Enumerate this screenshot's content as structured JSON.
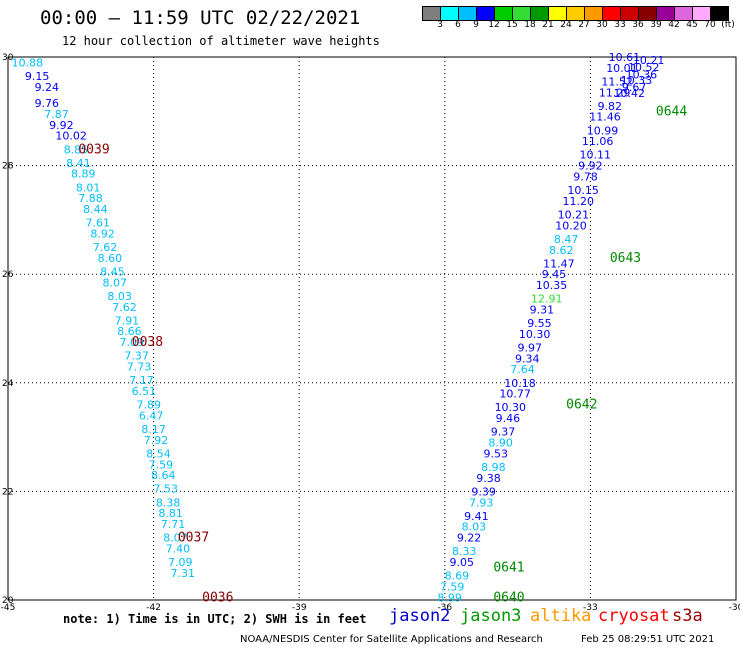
{
  "header": {
    "title": "00:00 – 11:59 UTC 02/22/2021",
    "subtitle": "12 hour collection of altimeter wave heights"
  },
  "colorbar": {
    "colors": [
      "#7f7f7f",
      "#00ffff",
      "#00bfff",
      "#0000ff",
      "#00cc00",
      "#33dd33",
      "#009900",
      "#ffff00",
      "#ffcc00",
      "#ff9900",
      "#ff0000",
      "#cc0000",
      "#880000",
      "#990099",
      "#dd66dd",
      "#ffaaff",
      "#000000"
    ],
    "labels": [
      "3",
      "6",
      "9",
      "12",
      "15",
      "18",
      "21",
      "24",
      "27",
      "30",
      "33",
      "36",
      "39",
      "42",
      "45",
      "70",
      "(ft)"
    ]
  },
  "chart_data": {
    "type": "scatter",
    "xlim": [
      -45,
      -30
    ],
    "ylim": [
      20,
      30
    ],
    "xticks": [
      "-45",
      "-42",
      "-39",
      "-36",
      "-33",
      "-30"
    ],
    "yticks": [
      "20",
      "22",
      "24",
      "26",
      "28",
      "30"
    ],
    "grid": true,
    "points": [
      {
        "x": -44.6,
        "y": 29.9,
        "v": "10.88",
        "c": "#00bfff"
      },
      {
        "x": -44.4,
        "y": 29.65,
        "v": "9.15",
        "c": "#0000ff"
      },
      {
        "x": -44.2,
        "y": 29.45,
        "v": "9.24",
        "c": "#0000ff"
      },
      {
        "x": -44.2,
        "y": 29.15,
        "v": "9.76",
        "c": "#0000ff"
      },
      {
        "x": -44.0,
        "y": 28.95,
        "v": "7.87",
        "c": "#00bfff"
      },
      {
        "x": -43.9,
        "y": 28.75,
        "v": "9.92",
        "c": "#0000ff"
      },
      {
        "x": -43.7,
        "y": 28.55,
        "v": "10.02",
        "c": "#0000ff"
      },
      {
        "x": -43.6,
        "y": 28.3,
        "v": "8.85",
        "c": "#00bfff"
      },
      {
        "x": -43.55,
        "y": 28.05,
        "v": "8.41",
        "c": "#00bfff"
      },
      {
        "x": -43.45,
        "y": 27.85,
        "v": "8.89",
        "c": "#00bfff"
      },
      {
        "x": -43.35,
        "y": 27.6,
        "v": "8.01",
        "c": "#00bfff"
      },
      {
        "x": -43.3,
        "y": 27.4,
        "v": "7.88",
        "c": "#00bfff"
      },
      {
        "x": -43.2,
        "y": 27.2,
        "v": "8.44",
        "c": "#00bfff"
      },
      {
        "x": -43.15,
        "y": 26.95,
        "v": "7.61",
        "c": "#00bfff"
      },
      {
        "x": -43.05,
        "y": 26.75,
        "v": "8.92",
        "c": "#00bfff"
      },
      {
        "x": -43.0,
        "y": 26.5,
        "v": "7.62",
        "c": "#00bfff"
      },
      {
        "x": -42.9,
        "y": 26.3,
        "v": "8.60",
        "c": "#00bfff"
      },
      {
        "x": -42.85,
        "y": 26.05,
        "v": "8.45",
        "c": "#00bfff"
      },
      {
        "x": -42.8,
        "y": 25.85,
        "v": "8.07",
        "c": "#00bfff"
      },
      {
        "x": -42.7,
        "y": 25.6,
        "v": "8.03",
        "c": "#00bfff"
      },
      {
        "x": -42.6,
        "y": 25.4,
        "v": "7.62",
        "c": "#00bfff"
      },
      {
        "x": -42.55,
        "y": 25.15,
        "v": "7.91",
        "c": "#00bfff"
      },
      {
        "x": -42.5,
        "y": 24.95,
        "v": "8.66",
        "c": "#00bfff"
      },
      {
        "x": -42.45,
        "y": 24.75,
        "v": "7.09",
        "c": "#00bfff"
      },
      {
        "x": -42.35,
        "y": 24.5,
        "v": "7.37",
        "c": "#00bfff"
      },
      {
        "x": -42.3,
        "y": 24.3,
        "v": "7.73",
        "c": "#00bfff"
      },
      {
        "x": -42.25,
        "y": 24.05,
        "v": "7.17",
        "c": "#00bfff"
      },
      {
        "x": -42.2,
        "y": 23.85,
        "v": "6.51",
        "c": "#00bfff"
      },
      {
        "x": -42.1,
        "y": 23.6,
        "v": "7.89",
        "c": "#00bfff"
      },
      {
        "x": -42.05,
        "y": 23.4,
        "v": "6.47",
        "c": "#00bfff"
      },
      {
        "x": -42.0,
        "y": 23.15,
        "v": "8.17",
        "c": "#00bfff"
      },
      {
        "x": -41.95,
        "y": 22.95,
        "v": "7.92",
        "c": "#00bfff"
      },
      {
        "x": -41.9,
        "y": 22.7,
        "v": "8.54",
        "c": "#00bfff"
      },
      {
        "x": -41.85,
        "y": 22.5,
        "v": "7.59",
        "c": "#00bfff"
      },
      {
        "x": -41.8,
        "y": 22.3,
        "v": "8.64",
        "c": "#00bfff"
      },
      {
        "x": -41.75,
        "y": 22.05,
        "v": "7.53",
        "c": "#00bfff"
      },
      {
        "x": -41.7,
        "y": 21.8,
        "v": "8.38",
        "c": "#00bfff"
      },
      {
        "x": -41.65,
        "y": 21.6,
        "v": "8.81",
        "c": "#00bfff"
      },
      {
        "x": -41.6,
        "y": 21.4,
        "v": "7.71",
        "c": "#00bfff"
      },
      {
        "x": -41.55,
        "y": 21.15,
        "v": "8.07",
        "c": "#00bfff"
      },
      {
        "x": -41.5,
        "y": 20.95,
        "v": "7.40",
        "c": "#00bfff"
      },
      {
        "x": -41.45,
        "y": 20.7,
        "v": "7.09",
        "c": "#00bfff"
      },
      {
        "x": -41.4,
        "y": 20.5,
        "v": "7.31",
        "c": "#00bfff"
      },
      {
        "x": -35.9,
        "y": 20.05,
        "v": "8.99",
        "c": "#00bfff"
      },
      {
        "x": -35.85,
        "y": 20.25,
        "v": "7.59",
        "c": "#00bfff"
      },
      {
        "x": -35.75,
        "y": 20.45,
        "v": "8.69",
        "c": "#00bfff"
      },
      {
        "x": -35.65,
        "y": 20.7,
        "v": "9.05",
        "c": "#0000ff"
      },
      {
        "x": -35.6,
        "y": 20.9,
        "v": "8.33",
        "c": "#00bfff"
      },
      {
        "x": -35.5,
        "y": 21.15,
        "v": "9.22",
        "c": "#0000ff"
      },
      {
        "x": -35.4,
        "y": 21.35,
        "v": "8.03",
        "c": "#00bfff"
      },
      {
        "x": -35.35,
        "y": 21.55,
        "v": "9.41",
        "c": "#0000ff"
      },
      {
        "x": -35.25,
        "y": 21.8,
        "v": "7.93",
        "c": "#00bfff"
      },
      {
        "x": -35.2,
        "y": 22.0,
        "v": "9.39",
        "c": "#0000ff"
      },
      {
        "x": -35.1,
        "y": 22.25,
        "v": "9.38",
        "c": "#0000ff"
      },
      {
        "x": -35.0,
        "y": 22.45,
        "v": "8.98",
        "c": "#00bfff"
      },
      {
        "x": -34.95,
        "y": 22.7,
        "v": "9.53",
        "c": "#0000ff"
      },
      {
        "x": -34.85,
        "y": 22.9,
        "v": "8.90",
        "c": "#00bfff"
      },
      {
        "x": -34.8,
        "y": 23.1,
        "v": "9.37",
        "c": "#0000ff"
      },
      {
        "x": -34.7,
        "y": 23.35,
        "v": "9.46",
        "c": "#0000ff"
      },
      {
        "x": -34.65,
        "y": 23.55,
        "v": "10.30",
        "c": "#0000ff"
      },
      {
        "x": -34.55,
        "y": 23.8,
        "v": "10.77",
        "c": "#0000ff"
      },
      {
        "x": -34.45,
        "y": 24.0,
        "v": "10.18",
        "c": "#0000ff"
      },
      {
        "x": -34.4,
        "y": 24.25,
        "v": "7.64",
        "c": "#00bfff"
      },
      {
        "x": -34.3,
        "y": 24.45,
        "v": "9.34",
        "c": "#0000ff"
      },
      {
        "x": -34.25,
        "y": 24.65,
        "v": "9.97",
        "c": "#0000ff"
      },
      {
        "x": -34.15,
        "y": 24.9,
        "v": "10.30",
        "c": "#0000ff"
      },
      {
        "x": -34.05,
        "y": 25.1,
        "v": "9.55",
        "c": "#0000ff"
      },
      {
        "x": -34.0,
        "y": 25.35,
        "v": "9.31",
        "c": "#0000ff"
      },
      {
        "x": -33.9,
        "y": 25.55,
        "v": "12.91",
        "c": "#33dd33"
      },
      {
        "x": -33.8,
        "y": 25.8,
        "v": "10.35",
        "c": "#0000ff"
      },
      {
        "x": -33.75,
        "y": 26.0,
        "v": "9.45",
        "c": "#0000ff"
      },
      {
        "x": -33.65,
        "y": 26.2,
        "v": "11.47",
        "c": "#0000ff"
      },
      {
        "x": -33.6,
        "y": 26.45,
        "v": "8.62",
        "c": "#00bfff"
      },
      {
        "x": -33.5,
        "y": 26.65,
        "v": "8.47",
        "c": "#00bfff"
      },
      {
        "x": -33.4,
        "y": 26.9,
        "v": "10.20",
        "c": "#0000ff"
      },
      {
        "x": -33.35,
        "y": 27.1,
        "v": "10.21",
        "c": "#0000ff"
      },
      {
        "x": -33.25,
        "y": 27.35,
        "v": "11.20",
        "c": "#0000ff"
      },
      {
        "x": -33.15,
        "y": 27.55,
        "v": "10.15",
        "c": "#0000ff"
      },
      {
        "x": -33.1,
        "y": 27.8,
        "v": "9.78",
        "c": "#0000ff"
      },
      {
        "x": -33.0,
        "y": 28.0,
        "v": "9.92",
        "c": "#0000ff"
      },
      {
        "x": -32.9,
        "y": 28.2,
        "v": "10.11",
        "c": "#0000ff"
      },
      {
        "x": -32.85,
        "y": 28.45,
        "v": "11.06",
        "c": "#0000ff"
      },
      {
        "x": -32.75,
        "y": 28.65,
        "v": "10.99",
        "c": "#0000ff"
      },
      {
        "x": -32.7,
        "y": 28.9,
        "v": "11.46",
        "c": "#0000ff"
      },
      {
        "x": -32.6,
        "y": 29.1,
        "v": "9.82",
        "c": "#0000ff"
      },
      {
        "x": -32.5,
        "y": 29.35,
        "v": "11.29",
        "c": "#0000ff"
      },
      {
        "x": -32.45,
        "y": 29.55,
        "v": "11.52",
        "c": "#0000ff"
      },
      {
        "x": -32.35,
        "y": 29.8,
        "v": "10.01",
        "c": "#0000ff"
      },
      {
        "x": -32.3,
        "y": 30.0,
        "v": "10.61",
        "c": "#0000ff"
      }
    ],
    "points_extra": [
      {
        "x": -32.2,
        "y": 30.25,
        "v": "10.42",
        "c": "#0000ff"
      },
      {
        "x": -32.1,
        "y": 30.45,
        "v": "9.67",
        "c": "#0000ff"
      },
      {
        "x": -32.05,
        "y": 30.7,
        "v": "10.33",
        "c": "#0000ff"
      },
      {
        "x": -31.95,
        "y": 30.9,
        "v": "10.36",
        "c": "#0000ff"
      },
      {
        "x": -31.9,
        "y": 31.15,
        "v": "10.52",
        "c": "#0000ff"
      },
      {
        "x": -31.8,
        "y": 31.4,
        "v": "10.21",
        "c": "#0000ff"
      }
    ],
    "time_labels": [
      {
        "x": -43.55,
        "y": 28.3,
        "t": "0039",
        "c": "#880000"
      },
      {
        "x": -42.45,
        "y": 24.75,
        "t": "0038",
        "c": "#880000"
      },
      {
        "x": -41.5,
        "y": 21.15,
        "t": "0037",
        "c": "#880000"
      },
      {
        "x": -41.0,
        "y": 20.05,
        "t": "0036",
        "c": "#880000"
      },
      {
        "x": -35.0,
        "y": 20.05,
        "t": "0640",
        "c": "#008800"
      },
      {
        "x": -35.0,
        "y": 20.6,
        "t": "0641",
        "c": "#008800"
      },
      {
        "x": -33.5,
        "y": 23.6,
        "t": "0642",
        "c": "#008800"
      },
      {
        "x": -32.6,
        "y": 26.3,
        "t": "0643",
        "c": "#008800"
      },
      {
        "x": -31.65,
        "y": 29.0,
        "t": "0644",
        "c": "#008800"
      }
    ]
  },
  "note": "note: 1) Time is in UTC; 2) SWH is in feet",
  "legend": [
    {
      "label": "jason2",
      "color": "#0000cc"
    },
    {
      "label": "jason3",
      "color": "#009900"
    },
    {
      "label": "altika",
      "color": "#ff9900"
    },
    {
      "label": "cryosat",
      "color": "#ff0000"
    },
    {
      "label": "s3a",
      "color": "#990000"
    }
  ],
  "footer": {
    "credit": "NOAA/NESDIS Center for Satellite Applications and Research",
    "timestamp": "Feb 25 08:29:51 UTC 2021"
  }
}
